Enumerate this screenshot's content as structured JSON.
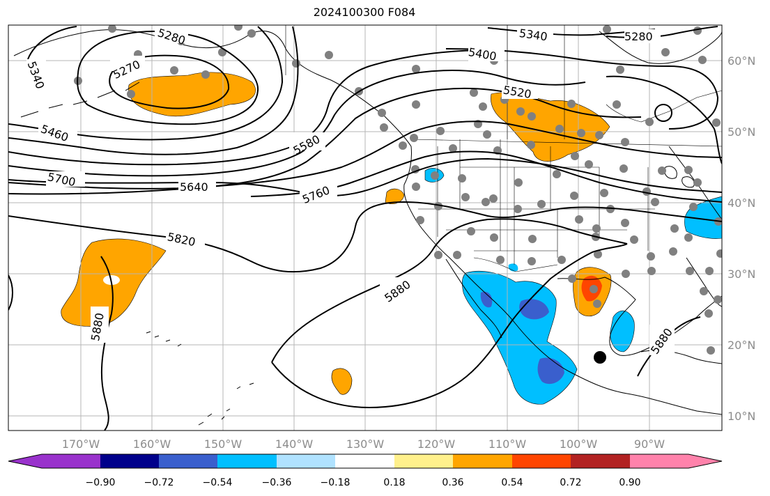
{
  "title": "2024100300 F084",
  "lon_labels": [
    "170°W",
    "160°W",
    "150°W",
    "140°W",
    "130°W",
    "120°W",
    "110°W",
    "100°W",
    "90°W"
  ],
  "lat_labels": [
    "60°N",
    "50°N",
    "40°N",
    "30°N",
    "20°N",
    "10°N"
  ],
  "contour_labels": [
    "5280",
    "5340",
    "5270",
    "5340",
    "5400",
    "5520",
    "5460",
    "5580",
    "5640",
    "5700",
    "5760",
    "5820",
    "5880",
    "5880",
    "5880",
    "5280"
  ],
  "colorbar": {
    "ticks": [
      "−0.90",
      "−0.72",
      "−0.54",
      "−0.36",
      "−0.18",
      "0.18",
      "0.36",
      "0.54",
      "0.72",
      "0.90"
    ],
    "colors": [
      "#9932cc",
      "#00008b",
      "#3a5fcd",
      "#00bfff",
      "#b0e2ff",
      "#ffffff",
      "#fff08c",
      "#ffa500",
      "#ff4500",
      "#b22222",
      "#ff82ab"
    ]
  }
}
